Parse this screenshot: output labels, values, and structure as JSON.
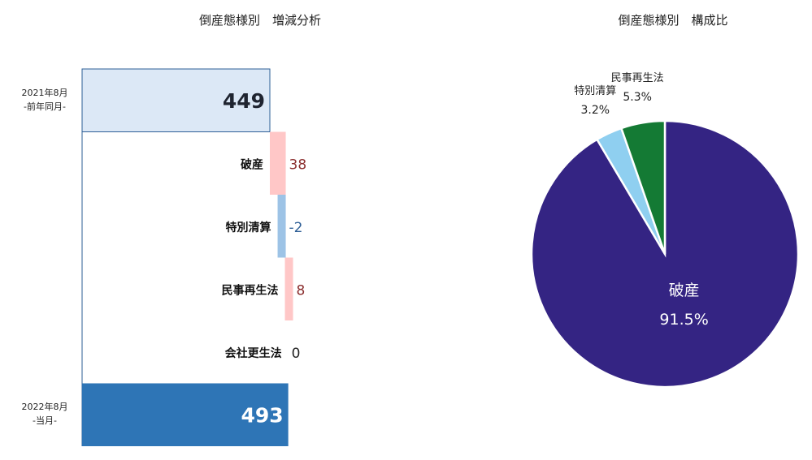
{
  "titles": {
    "waterfall": "倒産態様別　増減分析",
    "pie": "倒産態様別　構成比"
  },
  "periods": {
    "prev": {
      "line1": "2021年8月",
      "line2": "-前年同月-"
    },
    "curr": {
      "line1": "2022年8月",
      "line2": "-当月-"
    }
  },
  "chart_data": [
    {
      "type": "bar",
      "subtype": "waterfall",
      "title": "倒産態様別　増減分析",
      "start": {
        "label": "2021年8月 -前年同月-",
        "value": 449
      },
      "steps": [
        {
          "category": "破産",
          "delta": 38,
          "display": "38"
        },
        {
          "category": "特別清算",
          "delta": -2,
          "display": "-2"
        },
        {
          "category": "民事再生法",
          "delta": 8,
          "display": "8"
        },
        {
          "category": "会社更生法",
          "delta": 0,
          "display": "0"
        }
      ],
      "end": {
        "label": "2022年8月 -当月-",
        "value": 493
      },
      "colors": {
        "start_fill": "#dce8f6",
        "start_stroke": "#2e5f96",
        "increase": "#ffc7c7",
        "decrease": "#9dc3e6",
        "end_fill": "#2e75b6",
        "axis": "#2e5f96",
        "delta_text": "#8b2e2e",
        "delta_text_neg": "#2e5f96"
      }
    },
    {
      "type": "pie",
      "title": "倒産態様別　構成比",
      "slices": [
        {
          "label": "破産",
          "value": 91.5,
          "display": "91.5%",
          "color": "#342483",
          "label_position": "inside"
        },
        {
          "label": "特別清算",
          "value": 3.2,
          "display": "3.2%",
          "color": "#8fcff0",
          "label_position": "outside"
        },
        {
          "label": "民事再生法",
          "value": 5.3,
          "display": "5.3%",
          "color": "#147a34",
          "label_position": "outside"
        }
      ]
    }
  ]
}
